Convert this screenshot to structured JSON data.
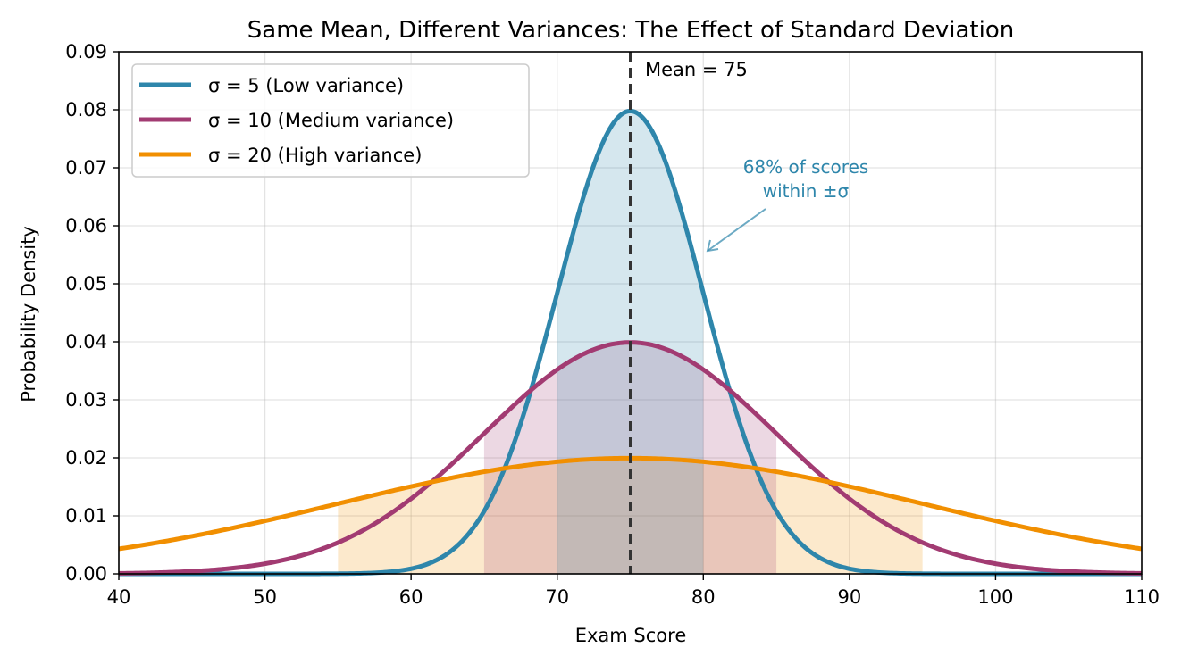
{
  "chart_data": {
    "type": "line",
    "title": "Same Mean, Different Variances: The Effect of Standard Deviation",
    "xlabel": "Exam Score",
    "ylabel": "Probability Density",
    "xlim": [
      40,
      110
    ],
    "ylim": [
      0,
      0.09
    ],
    "x_ticks": [
      "40",
      "50",
      "60",
      "70",
      "80",
      "90",
      "100",
      "110"
    ],
    "y_ticks": [
      "0.00",
      "0.01",
      "0.02",
      "0.03",
      "0.04",
      "0.05",
      "0.06",
      "0.07",
      "0.08",
      "0.09"
    ],
    "grid": true,
    "legend_position": "top-left",
    "mean": 75,
    "series": [
      {
        "name": "σ = 5 (Low variance)",
        "sigma": 5,
        "color": "#2E86AB",
        "shaded_range": [
          70,
          80
        ]
      },
      {
        "name": "σ = 10 (Medium variance)",
        "sigma": 10,
        "color": "#A23B72",
        "shaded_range": [
          65,
          85
        ]
      },
      {
        "name": "σ = 20 (High variance)",
        "sigma": 20,
        "color": "#F18F01",
        "shaded_range": [
          55,
          95
        ]
      }
    ],
    "annotations": {
      "mean_label": "Mean = 75",
      "sigma_note_line1": "68% of scores",
      "sigma_note_line2": "within ±σ",
      "sigma_note_color": "#2E86AB"
    }
  }
}
